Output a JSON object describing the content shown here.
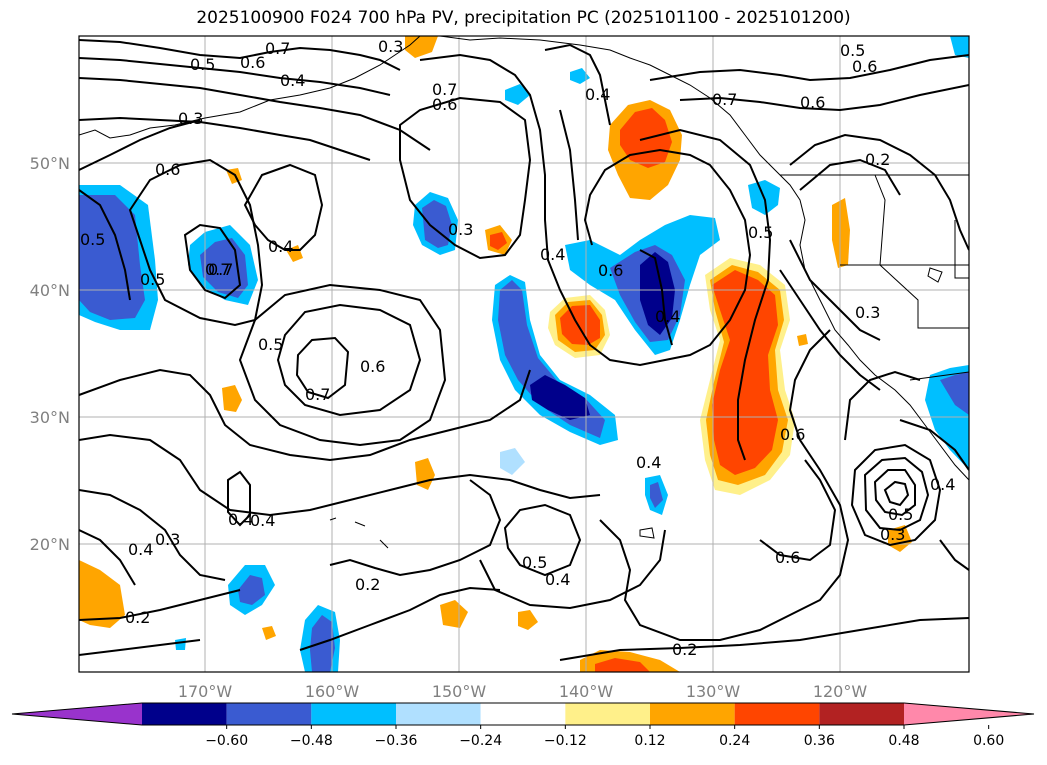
{
  "title": "2025100900 F024 700 hPa PV, precipitation PC (2025101100 - 2025101200)",
  "latitude_labels": [
    "50°N",
    "40°N",
    "30°N",
    "20°N"
  ],
  "longitude_labels": [
    "170°W",
    "160°W",
    "150°W",
    "140°W",
    "130°W",
    "120°W"
  ],
  "contour_labels": [
    "0.7",
    "0.5",
    "0.6",
    "0.4",
    "0.3",
    "0.6",
    "0.3",
    "0.7",
    "0.6",
    "0.7",
    "0.4",
    "0.5",
    "0.6",
    "0.4",
    "0.5",
    "0.7",
    "0.4",
    "0.3",
    "0.4",
    "0.7",
    "0.6",
    "0.5",
    "0.2",
    "0.6",
    "0.5",
    "0.3",
    "0.5",
    "0.6",
    "0.7",
    "0.4",
    "0.4",
    "0.3",
    "0.4",
    "0.2",
    "0.2",
    "0.5",
    "0.4",
    "0.2",
    "0.6",
    "0.6",
    "0.4",
    "0.5",
    "0.4",
    "0.3"
  ],
  "colorbar": {
    "tick_labels": [
      "−0.60",
      "−0.48",
      "−0.36",
      "−0.24",
      "−0.12",
      "0.12",
      "0.24",
      "0.36",
      "0.48",
      "0.60"
    ],
    "colors": [
      "#9933cc",
      "#00008b",
      "#3a5bd1",
      "#00bfff",
      "#b0e0ff",
      "#ffffff",
      "#fff08a",
      "#ffa500",
      "#ff4500",
      "#b22222",
      "#ff88aa"
    ]
  },
  "colors": {
    "contour": "#000000",
    "grid": "#b0b0b0",
    "coast": "#000000"
  }
}
